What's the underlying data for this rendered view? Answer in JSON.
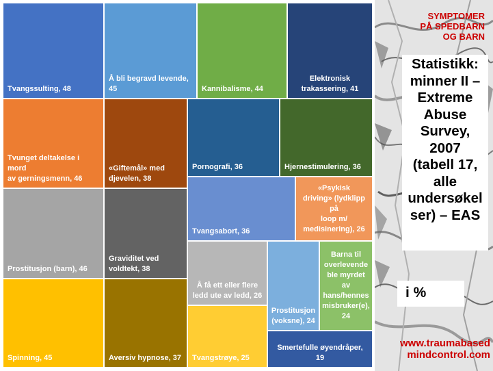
{
  "header": [
    "SYMPTOMER",
    "PÅ SPEDBARN",
    "OG BARN"
  ],
  "statistics_title": [
    "Statistikk:",
    "minner II –",
    "Extreme",
    "Abuse",
    "Survey,",
    "2007",
    "(tabell 17,",
    "alle",
    "undersøkel",
    "ser) – EAS"
  ],
  "unit_label": "i %",
  "footer": [
    "www.traumabased",
    "mindcontrol.com"
  ],
  "chart_data": {
    "type": "treemap",
    "title": "",
    "unit": "%",
    "categories": [
      {
        "label": "Tvangssulting, 48",
        "name": "Tvangssulting",
        "value": 48,
        "color": "#4472c4"
      },
      {
        "label": "Å bli begravd levende, 45",
        "name": "Å bli begravd levende",
        "value": 45,
        "color": "#5b9bd5"
      },
      {
        "label": "Kannibalisme, 44",
        "name": "Kannibalisme",
        "value": 44,
        "color": "#70ad47"
      },
      {
        "label": "Elektronisk trakassering, 41",
        "name": "Elektronisk trakassering",
        "value": 41,
        "color": "#264478"
      },
      {
        "label": "Tvunget deltakelse i mord av gerningsmenn, 46",
        "name": "Tvunget deltakelse i mord av gerningsmenn",
        "value": 46,
        "color": "#ed7d31"
      },
      {
        "label": "«Giftemål» med djevelen, 38",
        "name": "«Giftemål» med djevelen",
        "value": 38,
        "color": "#9e480e"
      },
      {
        "label": "Pornografi, 36",
        "name": "Pornografi",
        "value": 36,
        "color": "#255e91"
      },
      {
        "label": "Hjernestimulering, 36",
        "name": "Hjernestimulering",
        "value": 36,
        "color": "#43682b"
      },
      {
        "label": "Tvangsabort, 36",
        "name": "Tvangsabort",
        "value": 36,
        "color": "#698ed0"
      },
      {
        "label": "«Psykisk driving» (lydklipp på loop m/ medisinering), 26",
        "name": "«Psykisk driving» (lydklipp på loop m/ medisinering)",
        "value": 26,
        "color": "#f1975a"
      },
      {
        "label": "Prostitusjon (barn), 46",
        "name": "Prostitusjon (barn)",
        "value": 46,
        "color": "#a5a5a5"
      },
      {
        "label": "Graviditet ved voldtekt, 38",
        "name": "Graviditet ved voldtekt",
        "value": 38,
        "color": "#636363"
      },
      {
        "label": "Å få ett eller flere ledd ute av ledd, 26",
        "name": "Å få ett eller flere ledd ute av ledd",
        "value": 26,
        "color": "#b7b7b7"
      },
      {
        "label": "Prostitusjon (voksne), 24",
        "name": "Prostitusjon (voksne)",
        "value": 24,
        "color": "#7cafdd"
      },
      {
        "label": "Barna til overlevende ble myrdet av hans/hennes misbruker(e), 24",
        "name": "Barna til overlevende ble myrdet av hans/hennes misbruker(e)",
        "value": 24,
        "color": "#8cc168"
      },
      {
        "label": "Spinning, 45",
        "name": "Spinning",
        "value": 45,
        "color": "#ffc000"
      },
      {
        "label": "Aversiv hypnose, 37",
        "name": "Aversiv hypnose",
        "value": 37,
        "color": "#997300"
      },
      {
        "label": "Tvangstrøye, 25",
        "name": "Tvangstrøye",
        "value": 25,
        "color": "#ffcd33"
      },
      {
        "label": "Smertefulle øyendråper, 19",
        "name": "Smertefulle øyendråper",
        "value": 19,
        "color": "#335aa1"
      }
    ]
  }
}
